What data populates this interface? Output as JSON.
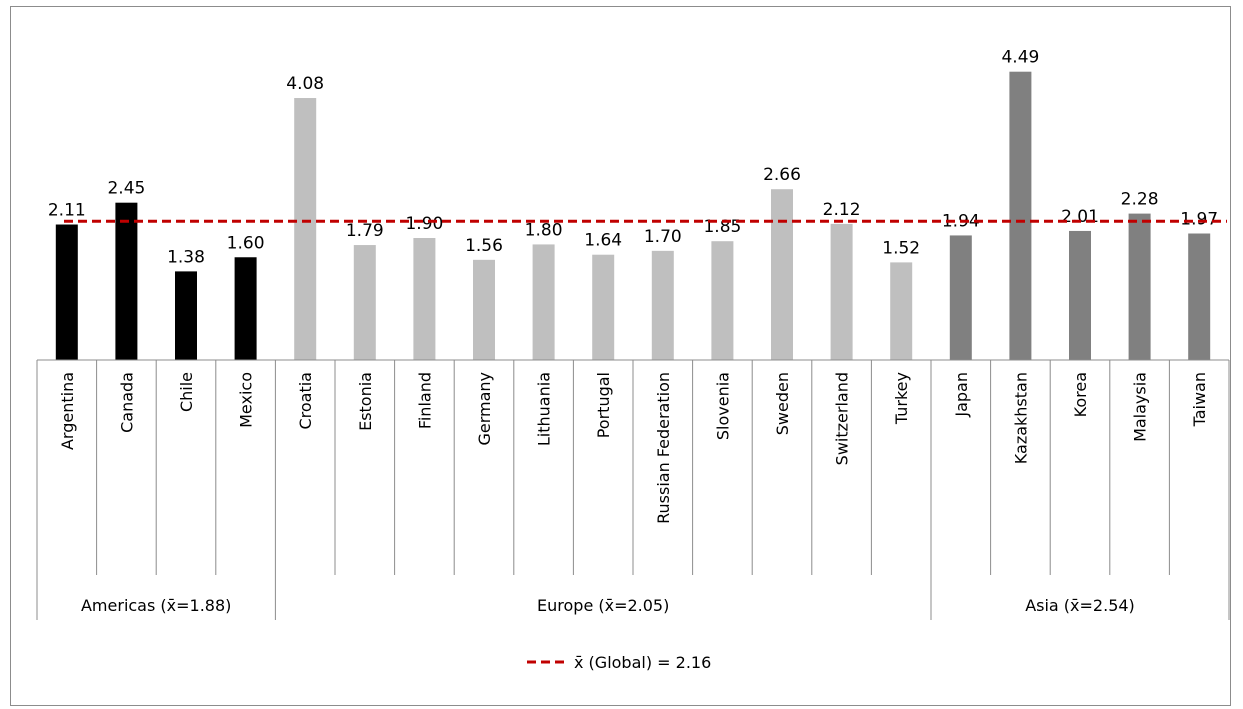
{
  "chart_data": {
    "type": "bar",
    "categories": [
      "Argentina",
      "Canada",
      "Chile",
      "Mexico",
      "Croatia",
      "Estonia",
      "Finland",
      "Germany",
      "Lithuania",
      "Portugal",
      "Russian Federation",
      "Slovenia",
      "Sweden",
      "Switzerland",
      "Turkey",
      "Japan",
      "Kazakhstan",
      "Korea",
      "Malaysia",
      "Taiwan"
    ],
    "values": [
      2.11,
      2.45,
      1.38,
      1.6,
      4.08,
      1.79,
      1.9,
      1.56,
      1.8,
      1.64,
      1.7,
      1.85,
      2.66,
      2.12,
      1.52,
      1.94,
      4.49,
      2.01,
      2.28,
      1.97
    ],
    "value_labels": [
      "2.11",
      "2.45",
      "1.38",
      "1.60",
      "4.08",
      "1.79",
      "1.90",
      "1.56",
      "1.80",
      "1.64",
      "1.70",
      "1.85",
      "2.66",
      "2.12",
      "1.52",
      "1.94",
      "4.49",
      "2.01",
      "2.28",
      "1.97"
    ],
    "groups": [
      {
        "label": "Americas (x̄=1.88)",
        "mean": 1.88,
        "start": 0,
        "count": 4,
        "color": "#000000"
      },
      {
        "label": "Europe (x̄=2.05)",
        "mean": 2.05,
        "start": 4,
        "count": 11,
        "color": "#bfbfbf"
      },
      {
        "label": "Asia (x̄=2.54)",
        "mean": 2.54,
        "start": 15,
        "count": 5,
        "color": "#808080"
      }
    ],
    "reference_line": {
      "label": "x̄ (Global) = 2.16",
      "value": 2.16,
      "color": "#c00000",
      "style": "dashed"
    },
    "ylim": [
      0,
      4.75
    ],
    "grid": false,
    "legend_position": "bottom-center",
    "title": "",
    "xlabel": "",
    "ylabel": ""
  }
}
